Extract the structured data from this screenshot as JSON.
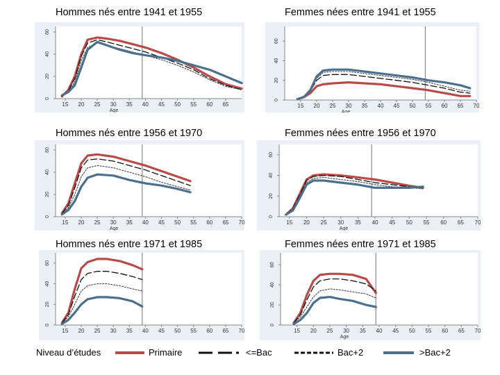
{
  "chart_data": [
    {
      "type": "line",
      "title": "Hommes nés entre 1941 et 1955",
      "xlabel": "Age",
      "ylabel": "",
      "xlim": [
        12,
        70
      ],
      "ylim": [
        0,
        65
      ],
      "xticks": [
        15,
        20,
        25,
        30,
        35,
        40,
        45,
        50,
        55,
        60,
        65
      ],
      "yticks": [
        0,
        20,
        40,
        60
      ],
      "vline": 39,
      "series": [
        {
          "key": "primaire",
          "x": [
            14,
            16,
            18,
            20,
            22,
            25,
            28,
            32,
            36,
            40,
            45,
            50,
            55,
            60,
            65,
            70
          ],
          "y": [
            2,
            8,
            20,
            40,
            53,
            55,
            54,
            52,
            49,
            46,
            41,
            35,
            28,
            20,
            13,
            9
          ]
        },
        {
          "key": "bac",
          "x": [
            14,
            16,
            18,
            20,
            22,
            25,
            28,
            32,
            36,
            40,
            45,
            50,
            55,
            60,
            65,
            70
          ],
          "y": [
            2,
            7,
            18,
            38,
            50,
            53,
            51,
            48,
            45,
            42,
            37,
            32,
            26,
            18,
            12,
            8
          ]
        },
        {
          "key": "bac2",
          "x": [
            14,
            16,
            18,
            20,
            22,
            25,
            28,
            32,
            36,
            40,
            45,
            50,
            55,
            60,
            65,
            70
          ],
          "y": [
            2,
            6,
            15,
            34,
            46,
            50,
            48,
            45,
            42,
            39,
            35,
            30,
            24,
            17,
            11,
            8
          ]
        },
        {
          "key": "bacplus2",
          "x": [
            14,
            16,
            18,
            20,
            22,
            25,
            28,
            32,
            36,
            40,
            45,
            50,
            55,
            60,
            65,
            70
          ],
          "y": [
            3,
            6,
            12,
            28,
            44,
            51,
            48,
            44,
            41,
            39,
            37,
            34,
            30,
            26,
            20,
            14
          ]
        }
      ]
    },
    {
      "type": "line",
      "title": "Femmes nées entre 1941 et 1955",
      "xlabel": "Age",
      "ylabel": "",
      "xlim": [
        10,
        70
      ],
      "ylim": [
        0,
        75
      ],
      "xticks": [
        15,
        20,
        25,
        30,
        35,
        40,
        45,
        50,
        55,
        60,
        65,
        70
      ],
      "yticks": [
        0,
        20,
        40,
        60
      ],
      "vline": 54,
      "series": [
        {
          "key": "primaire",
          "x": [
            14,
            16,
            18,
            20,
            22,
            25,
            30,
            35,
            40,
            45,
            50,
            55,
            60,
            65,
            68
          ],
          "y": [
            1,
            3,
            7,
            14,
            16,
            17,
            18,
            17,
            16,
            14,
            12,
            10,
            7,
            4,
            4
          ]
        },
        {
          "key": "bac",
          "x": [
            14,
            16,
            18,
            20,
            22,
            25,
            30,
            35,
            40,
            45,
            50,
            55,
            60,
            65,
            68
          ],
          "y": [
            1,
            3,
            9,
            20,
            25,
            26,
            26,
            24,
            22,
            20,
            18,
            15,
            12,
            8,
            7
          ]
        },
        {
          "key": "bac2",
          "x": [
            14,
            16,
            18,
            20,
            22,
            25,
            30,
            35,
            40,
            45,
            50,
            55,
            60,
            65,
            68
          ],
          "y": [
            1,
            4,
            10,
            22,
            28,
            29,
            29,
            27,
            25,
            23,
            21,
            18,
            14,
            10,
            9
          ]
        },
        {
          "key": "bacplus2",
          "x": [
            14,
            16,
            18,
            20,
            22,
            25,
            30,
            35,
            40,
            45,
            50,
            55,
            60,
            65,
            68
          ],
          "y": [
            1,
            3,
            10,
            24,
            30,
            31,
            31,
            29,
            27,
            25,
            23,
            20,
            18,
            15,
            12
          ]
        }
      ]
    },
    {
      "type": "line",
      "title": "Hommes nés entre 1956 et 1970",
      "xlabel": "Age",
      "ylabel": "",
      "xlim": [
        12,
        70
      ],
      "ylim": [
        0,
        65
      ],
      "xticks": [
        15,
        20,
        25,
        30,
        35,
        40,
        45,
        50,
        55,
        60,
        65,
        70
      ],
      "yticks": [
        0,
        20,
        40,
        60
      ],
      "vline": 39,
      "series": [
        {
          "key": "primaire",
          "x": [
            14,
            16,
            18,
            20,
            22,
            25,
            30,
            35,
            40,
            45,
            50,
            54
          ],
          "y": [
            3,
            12,
            30,
            48,
            55,
            56,
            54,
            50,
            46,
            41,
            36,
            32
          ]
        },
        {
          "key": "bac",
          "x": [
            14,
            16,
            18,
            20,
            22,
            25,
            30,
            35,
            40,
            45,
            50,
            54
          ],
          "y": [
            3,
            10,
            26,
            44,
            51,
            52,
            50,
            46,
            42,
            37,
            32,
            28
          ]
        },
        {
          "key": "bac2",
          "x": [
            14,
            16,
            18,
            20,
            22,
            25,
            30,
            35,
            40,
            45,
            50,
            54
          ],
          "y": [
            2,
            8,
            20,
            36,
            44,
            46,
            44,
            40,
            36,
            31,
            27,
            24
          ]
        },
        {
          "key": "bacplus2",
          "x": [
            14,
            16,
            18,
            20,
            22,
            25,
            30,
            35,
            40,
            45,
            50,
            54
          ],
          "y": [
            2,
            6,
            14,
            27,
            35,
            38,
            37,
            33,
            30,
            28,
            25,
            22
          ]
        }
      ]
    },
    {
      "type": "line",
      "title": "Femmes nées entre 1956 et 1970",
      "xlabel": "Age",
      "ylabel": "",
      "xlim": [
        12,
        70
      ],
      "ylim": [
        0,
        70
      ],
      "xticks": [
        15,
        20,
        25,
        30,
        35,
        40,
        45,
        50,
        55,
        60,
        65,
        70
      ],
      "yticks": [
        0,
        20,
        40,
        60
      ],
      "vline": 39,
      "series": [
        {
          "key": "primaire",
          "x": [
            14,
            16,
            18,
            20,
            22,
            25,
            30,
            35,
            40,
            45,
            50,
            54
          ],
          "y": [
            2,
            8,
            22,
            36,
            40,
            41,
            40,
            38,
            36,
            33,
            30,
            28
          ]
        },
        {
          "key": "bac",
          "x": [
            14,
            16,
            18,
            20,
            22,
            25,
            30,
            35,
            40,
            45,
            50,
            54
          ],
          "y": [
            2,
            8,
            21,
            35,
            39,
            40,
            39,
            36,
            33,
            31,
            29,
            28
          ]
        },
        {
          "key": "bac2",
          "x": [
            14,
            16,
            18,
            20,
            22,
            25,
            30,
            35,
            40,
            45,
            50,
            54
          ],
          "y": [
            2,
            7,
            20,
            33,
            37,
            38,
            36,
            34,
            31,
            29,
            28,
            27
          ]
        },
        {
          "key": "bacplus2",
          "x": [
            14,
            16,
            18,
            20,
            22,
            25,
            30,
            35,
            40,
            45,
            50,
            54
          ],
          "y": [
            2,
            6,
            18,
            31,
            35,
            35,
            33,
            31,
            28,
            28,
            28,
            29
          ]
        }
      ]
    },
    {
      "type": "line",
      "title": "Hommes nés entre 1971 et 1985",
      "xlabel": "",
      "ylabel": "",
      "xlim": [
        12,
        70
      ],
      "ylim": [
        0,
        70
      ],
      "xticks": [
        15,
        20,
        25,
        30,
        35,
        40,
        45,
        50,
        55,
        60,
        65,
        70
      ],
      "yticks": [
        0,
        20,
        40,
        60
      ],
      "vline": 39,
      "series": [
        {
          "key": "primaire",
          "x": [
            14,
            16,
            18,
            20,
            22,
            25,
            28,
            32,
            36,
            39
          ],
          "y": [
            2,
            12,
            35,
            55,
            61,
            64,
            64,
            62,
            58,
            54
          ]
        },
        {
          "key": "bac",
          "x": [
            14,
            16,
            18,
            20,
            22,
            25,
            28,
            32,
            36,
            39
          ],
          "y": [
            2,
            10,
            28,
            44,
            50,
            52,
            52,
            50,
            47,
            44
          ]
        },
        {
          "key": "bac2",
          "x": [
            14,
            16,
            18,
            20,
            22,
            25,
            28,
            32,
            36,
            39
          ],
          "y": [
            2,
            8,
            20,
            33,
            38,
            40,
            40,
            38,
            35,
            33
          ]
        },
        {
          "key": "bacplus2",
          "x": [
            14,
            16,
            18,
            20,
            22,
            25,
            28,
            32,
            36,
            39
          ],
          "y": [
            1,
            5,
            12,
            20,
            25,
            27,
            27,
            26,
            23,
            18
          ]
        }
      ]
    },
    {
      "type": "line",
      "title": "Femmes nées entre 1971 et 1985",
      "xlabel": "Age",
      "ylabel": "",
      "xlim": [
        10,
        70
      ],
      "ylim": [
        0,
        72
      ],
      "xticks": [
        15,
        20,
        25,
        30,
        35,
        40,
        45,
        50,
        55,
        60,
        65,
        70
      ],
      "yticks": [
        0,
        20,
        40,
        60
      ],
      "vline": 39,
      "series": [
        {
          "key": "primaire",
          "x": [
            14,
            16,
            18,
            20,
            22,
            25,
            28,
            32,
            36,
            39
          ],
          "y": [
            2,
            12,
            30,
            44,
            50,
            51,
            51,
            50,
            46,
            32
          ]
        },
        {
          "key": "bac",
          "x": [
            14,
            16,
            18,
            20,
            22,
            25,
            28,
            32,
            36,
            39
          ],
          "y": [
            2,
            10,
            25,
            38,
            44,
            46,
            46,
            44,
            41,
            34
          ]
        },
        {
          "key": "bac2",
          "x": [
            14,
            16,
            18,
            20,
            22,
            25,
            28,
            32,
            36,
            39
          ],
          "y": [
            2,
            8,
            18,
            28,
            34,
            36,
            35,
            33,
            31,
            27
          ]
        },
        {
          "key": "bacplus2",
          "x": [
            14,
            16,
            18,
            20,
            22,
            25,
            28,
            32,
            36,
            39
          ],
          "y": [
            1,
            5,
            12,
            22,
            27,
            28,
            26,
            24,
            20,
            18
          ]
        }
      ]
    }
  ],
  "legend": {
    "title": "Niveau d’études",
    "items": [
      {
        "key": "primaire",
        "label": "Primaire"
      },
      {
        "key": "bac",
        "label": "<=Bac"
      },
      {
        "key": "bac2",
        "label": "Bac+2"
      },
      {
        "key": "bacplus2",
        "label": ">Bac+2"
      }
    ]
  },
  "colors": {
    "primaire": "#b94a48",
    "bac": "#111111",
    "bac2": "#444444",
    "bacplus2": "#4a6f8f",
    "frame": "#eaf0f5",
    "plot_bg": "#ffffff",
    "axis": "#888888",
    "vline": "#888888"
  }
}
